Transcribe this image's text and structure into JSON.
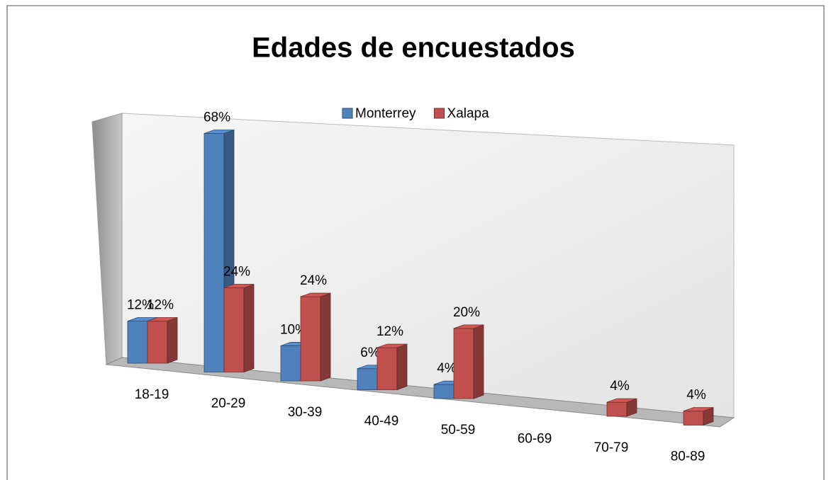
{
  "chart_data": {
    "type": "bar3d",
    "title": "Edades de encuestados",
    "categories": [
      "18-19",
      "20-29",
      "30-39",
      "40-49",
      "50-59",
      "60-69",
      "70-79",
      "80-89"
    ],
    "series": [
      {
        "name": "Monterrey",
        "color": "#4f81bd",
        "values": [
          12,
          68,
          10,
          6,
          4,
          null,
          null,
          null
        ],
        "value_labels": [
          "12%",
          "68%",
          "10%",
          "6%",
          "4%",
          null,
          null,
          null
        ]
      },
      {
        "name": "Xalapa",
        "color": "#c0504d",
        "values": [
          12,
          24,
          24,
          12,
          20,
          null,
          4,
          4
        ],
        "value_labels": [
          "12%",
          "24%",
          "24%",
          "12%",
          "20%",
          null,
          "4%",
          "4%"
        ]
      }
    ],
    "legend": "top"
  }
}
